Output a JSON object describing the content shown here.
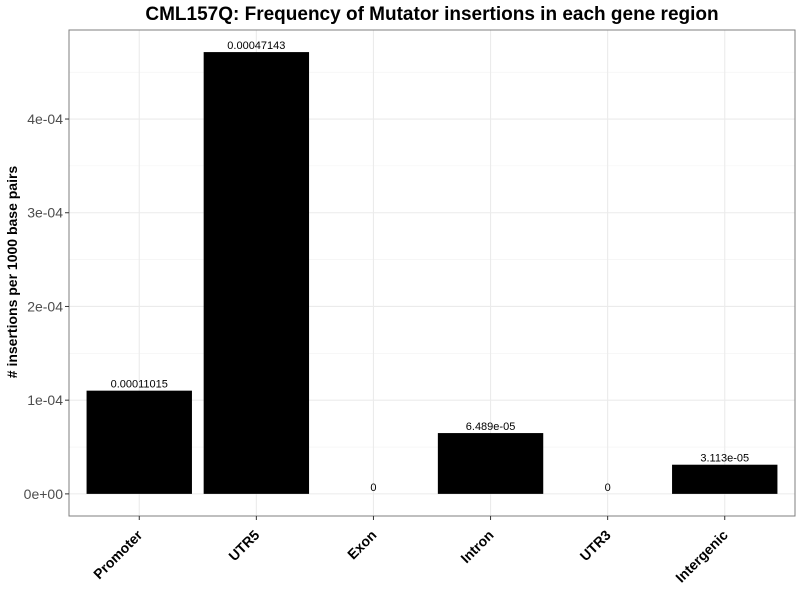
{
  "chart_data": {
    "type": "bar",
    "title": "CML157Q: Frequency of Mutator insertions in each gene region",
    "xlabel": "",
    "ylabel": "# insertions per 1000 base pairs",
    "categories": [
      "Promoter",
      "UTR5",
      "Exon",
      "Intron",
      "UTR3",
      "Intergenic"
    ],
    "values": [
      0.00011015,
      0.00047143,
      0,
      6.489e-05,
      0,
      3.113e-05
    ],
    "data_labels": [
      "0.00011015",
      "0.00047143",
      "0",
      "6.489e-05",
      "0",
      "3.113e-05"
    ],
    "ylim": [
      -2.36e-05,
      0.000495
    ],
    "y_ticks": [
      0,
      0.0001,
      0.0002,
      0.0003,
      0.0004
    ],
    "y_tick_labels": [
      "0e+00",
      "1e-04",
      "2e-04",
      "3e-04",
      "4e-04"
    ],
    "bar_color": "#000000",
    "grid": true,
    "legend": "none"
  }
}
